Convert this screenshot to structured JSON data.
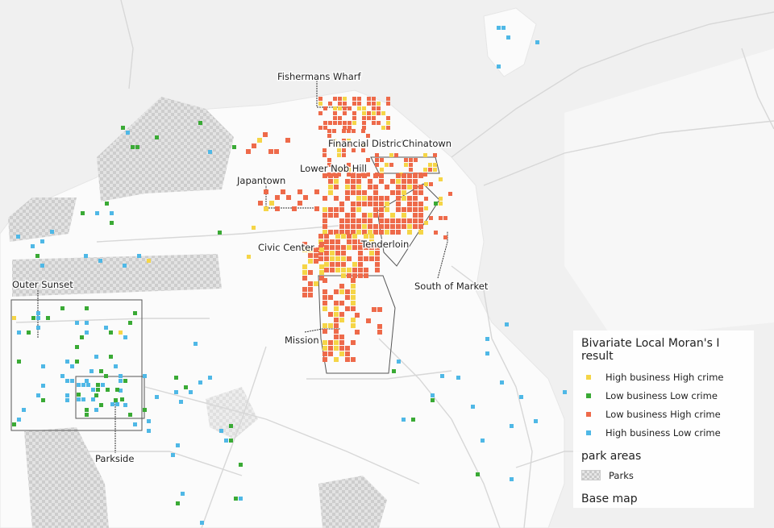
{
  "legend": {
    "title": "Bivariate Local Moran's I result",
    "categories": [
      {
        "label": "High business High crime",
        "color": "#f5d547"
      },
      {
        "label": "Low business Low crime",
        "color": "#3aaa35"
      },
      {
        "label": "Low business High crime",
        "color": "#ee6a4a"
      },
      {
        "label": "High business Low crime",
        "color": "#4fb8e6"
      }
    ],
    "park_title": "park areas",
    "park_label": "Parks",
    "basemap_title": "Base map"
  },
  "neighborhoods": {
    "fishermans_wharf": "Fishermans Wharf",
    "financial_district": "Financial District",
    "chinatown": "Chinatown",
    "lower_nob_hill": "Lower Nob Hill",
    "japantown": "Japantown",
    "civic_center": "Civic Center",
    "tenderloin": "Tenderloin",
    "south_of_market": "South of Market",
    "outer_sunset": "Outer Sunset",
    "mission": "Mission",
    "parkside": "Parkside"
  }
}
